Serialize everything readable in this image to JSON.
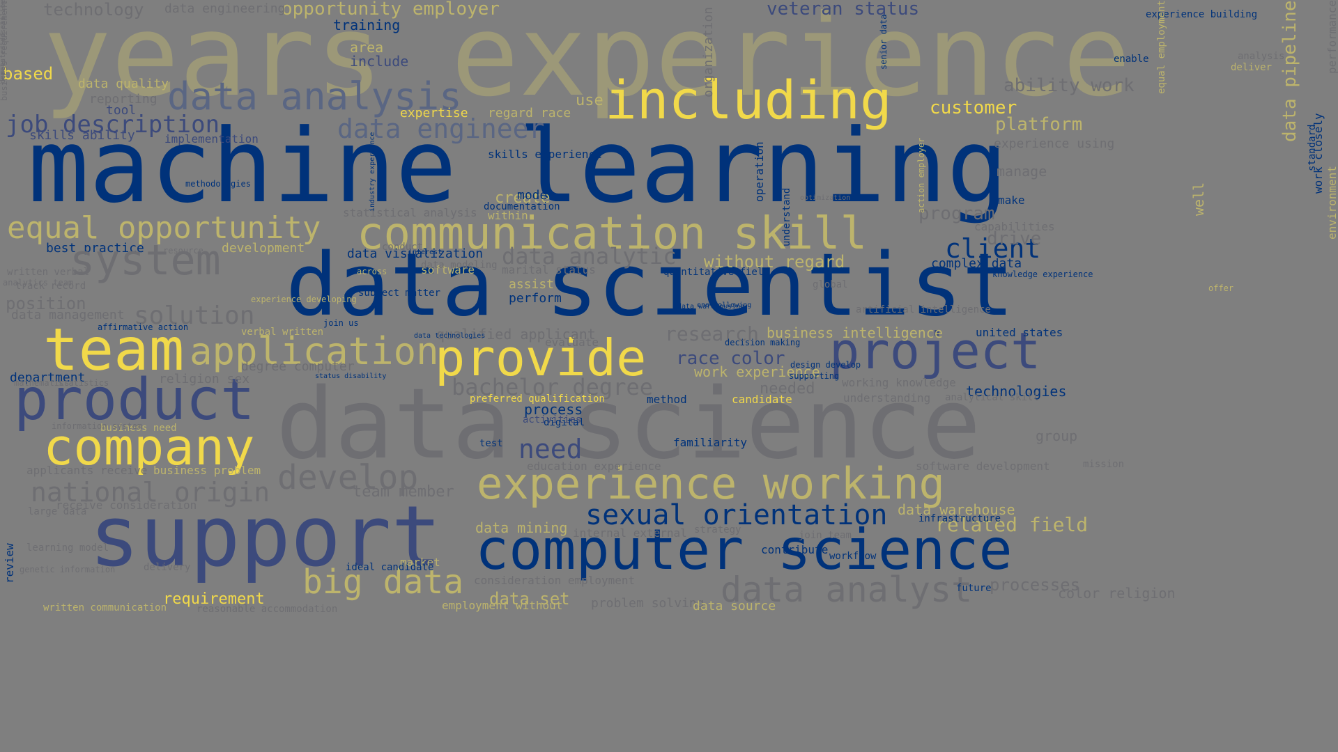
{
  "palette": {
    "background": "#7f7f7f",
    "navy": "#00327a",
    "slate": "#3c4a7c",
    "steel": "#5a6683",
    "grey": "#6e6e72",
    "olive": "#9c9878",
    "khaki": "#bdb46c",
    "yellow": "#f1d94a"
  },
  "words": [
    {
      "text": "years experience",
      "size": 162,
      "color": "olive",
      "rotate": 0
    },
    {
      "text": "machine learning",
      "size": 146,
      "color": "navy",
      "rotate": 0
    },
    {
      "text": "data scientist",
      "size": 124,
      "color": "navy",
      "rotate": 0
    },
    {
      "text": "data science",
      "size": 140,
      "color": "grey",
      "rotate": 0
    },
    {
      "text": "support",
      "size": 120,
      "color": "slate",
      "rotate": 0
    },
    {
      "text": "including",
      "size": 76,
      "color": "yellow",
      "rotate": 0
    },
    {
      "text": "communication skill",
      "size": 64,
      "color": "khaki",
      "rotate": 0
    },
    {
      "text": "team",
      "size": 84,
      "color": "yellow",
      "rotate": 0
    },
    {
      "text": "product",
      "size": 82,
      "color": "slate",
      "rotate": 0
    },
    {
      "text": "provide",
      "size": 72,
      "color": "yellow",
      "rotate": 0
    },
    {
      "text": "project",
      "size": 72,
      "color": "slate",
      "rotate": 0
    },
    {
      "text": "company",
      "size": 72,
      "color": "yellow",
      "rotate": 0
    },
    {
      "text": "computer science",
      "size": 80,
      "color": "navy",
      "rotate": 0
    },
    {
      "text": "experience working",
      "size": 62,
      "color": "khaki",
      "rotate": 0
    },
    {
      "text": "application",
      "size": 54,
      "color": "khaki",
      "rotate": 0
    },
    {
      "text": "data analysis",
      "size": 54,
      "color": "steel",
      "rotate": 0
    },
    {
      "text": "equal opportunity",
      "size": 44,
      "color": "khaki",
      "rotate": 0
    },
    {
      "text": "big data",
      "size": 48,
      "color": "khaki",
      "rotate": 0
    },
    {
      "text": "sexual orientation",
      "size": 40,
      "color": "navy",
      "rotate": 0
    },
    {
      "text": "data analyst",
      "size": 50,
      "color": "grey",
      "rotate": 0
    },
    {
      "text": "develop",
      "size": 48,
      "color": "grey",
      "rotate": 0
    },
    {
      "text": "national origin",
      "size": 38,
      "color": "grey",
      "rotate": 0
    },
    {
      "text": "data engineer",
      "size": 38,
      "color": "steel",
      "rotate": 0
    },
    {
      "text": "client",
      "size": 38,
      "color": "navy",
      "rotate": 0
    },
    {
      "text": "bachelor degree",
      "size": 32,
      "color": "grey",
      "rotate": 0
    },
    {
      "text": "need",
      "size": 38,
      "color": "slate",
      "rotate": 0
    },
    {
      "text": "job description",
      "size": 34,
      "color": "slate",
      "rotate": 0
    },
    {
      "text": "data analytic",
      "size": 32,
      "color": "grey",
      "rotate": 0
    },
    {
      "text": "opportunity employer",
      "size": 26,
      "color": "khaki",
      "rotate": 0
    },
    {
      "text": "veteran status",
      "size": 26,
      "color": "slate",
      "rotate": 0
    },
    {
      "text": "customer",
      "size": 26,
      "color": "yellow",
      "rotate": 0
    },
    {
      "text": "platform",
      "size": 26,
      "color": "khaki",
      "rotate": 0
    },
    {
      "text": "ability work",
      "size": 26,
      "color": "grey",
      "rotate": 0
    },
    {
      "text": "related field",
      "size": 28,
      "color": "khaki",
      "rotate": 0
    },
    {
      "text": "data warehouse",
      "size": 20,
      "color": "khaki",
      "rotate": 0
    },
    {
      "text": "race color",
      "size": 26,
      "color": "slate",
      "rotate": 0
    },
    {
      "text": "business intelligence",
      "size": 20,
      "color": "khaki",
      "rotate": 0
    },
    {
      "text": "work experience",
      "size": 20,
      "color": "khaki",
      "rotate": 0
    },
    {
      "text": "without regard",
      "size": 24,
      "color": "khaki",
      "rotate": 0
    },
    {
      "text": "program",
      "size": 26,
      "color": "grey",
      "rotate": 0
    },
    {
      "text": "drive",
      "size": 26,
      "color": "grey",
      "rotate": 0
    },
    {
      "text": "complex data",
      "size": 18,
      "color": "navy",
      "rotate": 0
    },
    {
      "text": "data visualization",
      "size": 18,
      "color": "navy",
      "rotate": 0
    },
    {
      "text": "data engineering",
      "size": 18,
      "color": "grey",
      "rotate": 0
    },
    {
      "text": "technology",
      "size": 24,
      "color": "grey",
      "rotate": 0
    },
    {
      "text": "training",
      "size": 20,
      "color": "navy",
      "rotate": 0
    },
    {
      "text": "area",
      "size": 20,
      "color": "khaki",
      "rotate": 0
    },
    {
      "text": "include",
      "size": 20,
      "color": "slate",
      "rotate": 0
    },
    {
      "text": "based",
      "size": 24,
      "color": "yellow",
      "rotate": 0
    },
    {
      "text": "data quality",
      "size": 18,
      "color": "khaki",
      "rotate": 0
    },
    {
      "text": "reporting",
      "size": 18,
      "color": "grey",
      "rotate": 0
    },
    {
      "text": "tool",
      "size": 18,
      "color": "slate",
      "rotate": 0
    },
    {
      "text": "skills ability",
      "size": 18,
      "color": "slate",
      "rotate": 0
    },
    {
      "text": "implementation",
      "size": 16,
      "color": "slate",
      "rotate": 0
    },
    {
      "text": "methodologies",
      "size": 12,
      "color": "navy",
      "rotate": 0
    },
    {
      "text": "expertise",
      "size": 18,
      "color": "yellow",
      "rotate": 0
    },
    {
      "text": "regard race",
      "size": 18,
      "color": "khaki",
      "rotate": 0
    },
    {
      "text": "use",
      "size": 22,
      "color": "khaki",
      "rotate": 0
    },
    {
      "text": "skills experience",
      "size": 16,
      "color": "navy",
      "rotate": 0
    },
    {
      "text": "create",
      "size": 22,
      "color": "khaki",
      "rotate": 0
    },
    {
      "text": "model",
      "size": 18,
      "color": "navy",
      "rotate": 0
    },
    {
      "text": "documentation",
      "size": 14,
      "color": "navy",
      "rotate": 0
    },
    {
      "text": "within",
      "size": 16,
      "color": "khaki",
      "rotate": 0
    },
    {
      "text": "best practice",
      "size": 18,
      "color": "navy",
      "rotate": 0
    },
    {
      "text": "development",
      "size": 18,
      "color": "khaki",
      "rotate": 0
    },
    {
      "text": "position",
      "size": 24,
      "color": "grey",
      "rotate": 0
    },
    {
      "text": "data management",
      "size": 18,
      "color": "grey",
      "rotate": 0
    },
    {
      "text": "solution",
      "size": 36,
      "color": "grey",
      "rotate": 0
    },
    {
      "text": "system",
      "size": 60,
      "color": "grey",
      "rotate": 0
    },
    {
      "text": "statistical analysis",
      "size": 16,
      "color": "grey",
      "rotate": 0
    },
    {
      "text": "marital status",
      "size": 16,
      "color": "grey",
      "rotate": 0
    },
    {
      "text": "assist",
      "size": 18,
      "color": "khaki",
      "rotate": 0
    },
    {
      "text": "perform",
      "size": 18,
      "color": "navy",
      "rotate": 0
    },
    {
      "text": "software",
      "size": 16,
      "color": "khaki",
      "rotate": 0
    },
    {
      "text": "qualified applicant",
      "size": 20,
      "color": "grey",
      "rotate": 0
    },
    {
      "text": "evaluate",
      "size": 16,
      "color": "grey",
      "rotate": 0
    },
    {
      "text": "quantitative field",
      "size": 14,
      "color": "navy",
      "rotate": 0
    },
    {
      "text": "research",
      "size": 28,
      "color": "grey",
      "rotate": 0
    },
    {
      "text": "decision making",
      "size": 12,
      "color": "navy",
      "rotate": 0
    },
    {
      "text": "candidate",
      "size": 16,
      "color": "yellow",
      "rotate": 0
    },
    {
      "text": "needed",
      "size": 22,
      "color": "grey",
      "rotate": 0
    },
    {
      "text": "working knowledge",
      "size": 16,
      "color": "grey",
      "rotate": 0
    },
    {
      "text": "technologies",
      "size": 20,
      "color": "navy",
      "rotate": 0
    },
    {
      "text": "united states",
      "size": 16,
      "color": "navy",
      "rotate": 0
    },
    {
      "text": "analytical skill",
      "size": 14,
      "color": "grey",
      "rotate": 0
    },
    {
      "text": "understanding",
      "size": 16,
      "color": "grey",
      "rotate": 0
    },
    {
      "text": "method",
      "size": 16,
      "color": "navy",
      "rotate": 0
    },
    {
      "text": "process",
      "size": 20,
      "color": "navy",
      "rotate": 0
    },
    {
      "text": "activities",
      "size": 14,
      "color": "slate",
      "rotate": 0
    },
    {
      "text": "preferred qualification",
      "size": 14,
      "color": "yellow",
      "rotate": 0
    },
    {
      "text": "religion sex",
      "size": 18,
      "color": "grey",
      "rotate": 0
    },
    {
      "text": "degree computer",
      "size": 18,
      "color": "grey",
      "rotate": 0
    },
    {
      "text": "department",
      "size": 18,
      "color": "navy",
      "rotate": 0
    },
    {
      "text": "business need",
      "size": 14,
      "color": "khaki",
      "rotate": 0
    },
    {
      "text": "business problem",
      "size": 16,
      "color": "khaki",
      "rotate": 0
    },
    {
      "text": "applicants receive",
      "size": 16,
      "color": "grey",
      "rotate": 0
    },
    {
      "text": "receive consideration",
      "size": 16,
      "color": "grey",
      "rotate": 0
    },
    {
      "text": "team member",
      "size": 22,
      "color": "grey",
      "rotate": 0
    },
    {
      "text": "education experience",
      "size": 16,
      "color": "grey",
      "rotate": 0
    },
    {
      "text": "familiarity",
      "size": 16,
      "color": "navy",
      "rotate": 0
    },
    {
      "text": "software development",
      "size": 16,
      "color": "grey",
      "rotate": 0
    },
    {
      "text": "data mining",
      "size": 20,
      "color": "khaki",
      "rotate": 0
    },
    {
      "text": "internal external",
      "size": 16,
      "color": "grey",
      "rotate": 0
    },
    {
      "text": "strategy",
      "size": 14,
      "color": "grey",
      "rotate": 0
    },
    {
      "text": "join team",
      "size": 14,
      "color": "grey",
      "rotate": 0
    },
    {
      "text": "contribute",
      "size": 16,
      "color": "navy",
      "rotate": 0
    },
    {
      "text": "infrastructure",
      "size": 14,
      "color": "navy",
      "rotate": 0
    },
    {
      "text": "workflow",
      "size": 14,
      "color": "navy",
      "rotate": 0
    },
    {
      "text": "market",
      "size": 16,
      "color": "khaki",
      "rotate": 0
    },
    {
      "text": "ideal candidate",
      "size": 14,
      "color": "navy",
      "rotate": 0
    },
    {
      "text": "consideration employment",
      "size": 16,
      "color": "grey",
      "rotate": 0
    },
    {
      "text": "data set",
      "size": 24,
      "color": "khaki",
      "rotate": 0
    },
    {
      "text": "problem solving",
      "size": 18,
      "color": "grey",
      "rotate": 0
    },
    {
      "text": "data source",
      "size": 18,
      "color": "khaki",
      "rotate": 0
    },
    {
      "text": "employment without",
      "size": 16,
      "color": "khaki",
      "rotate": 0
    },
    {
      "text": "requirement",
      "size": 22,
      "color": "yellow",
      "rotate": 0
    },
    {
      "text": "written communication",
      "size": 14,
      "color": "khaki",
      "rotate": 0
    },
    {
      "text": "reasonable accommodation",
      "size": 14,
      "color": "grey",
      "rotate": 0
    },
    {
      "text": "processes",
      "size": 24,
      "color": "grey",
      "rotate": 0
    },
    {
      "text": "color religion",
      "size": 20,
      "color": "grey",
      "rotate": 0
    },
    {
      "text": "future",
      "size": 14,
      "color": "navy",
      "rotate": 0
    },
    {
      "text": "group",
      "size": 20,
      "color": "grey",
      "rotate": 0
    },
    {
      "text": "mission",
      "size": 14,
      "color": "grey",
      "rotate": 0
    },
    {
      "text": "manage",
      "size": 20,
      "color": "grey",
      "rotate": 0
    },
    {
      "text": "make",
      "size": 16,
      "color": "navy",
      "rotate": 0
    },
    {
      "text": "experience using",
      "size": 18,
      "color": "grey",
      "rotate": 0
    },
    {
      "text": "experience building",
      "size": 14,
      "color": "navy",
      "rotate": 0
    },
    {
      "text": "deliver",
      "size": 14,
      "color": "khaki",
      "rotate": 0
    },
    {
      "text": "enable",
      "size": 14,
      "color": "navy",
      "rotate": 0
    },
    {
      "text": "analysis",
      "size": 14,
      "color": "grey",
      "rotate": 0
    },
    {
      "text": "capabilities",
      "size": 16,
      "color": "grey",
      "rotate": 0
    },
    {
      "text": "offer",
      "size": 12,
      "color": "khaki",
      "rotate": 0
    },
    {
      "text": "knowledge experience",
      "size": 12,
      "color": "navy",
      "rotate": 0
    },
    {
      "text": "supporting",
      "size": 12,
      "color": "navy",
      "rotate": 0
    },
    {
      "text": "design develop",
      "size": 12,
      "color": "navy",
      "rotate": 0
    },
    {
      "text": "artificial intelligence",
      "size": 14,
      "color": "grey",
      "rotate": 0
    },
    {
      "text": "experience developing",
      "size": 12,
      "color": "khaki",
      "rotate": 0
    },
    {
      "text": "affirmative action",
      "size": 12,
      "color": "navy",
      "rotate": 0
    },
    {
      "text": "track record",
      "size": 14,
      "color": "grey",
      "rotate": 0
    },
    {
      "text": "written verbal",
      "size": 14,
      "color": "grey",
      "rotate": 0
    },
    {
      "text": "analytics team",
      "size": 12,
      "color": "grey",
      "rotate": 0
    },
    {
      "text": "large data",
      "size": 14,
      "color": "grey",
      "rotate": 0
    },
    {
      "text": "genetic information",
      "size": 12,
      "color": "grey",
      "rotate": 0
    },
    {
      "text": "delivery",
      "size": 14,
      "color": "grey",
      "rotate": 0
    },
    {
      "text": "learning model",
      "size": 14,
      "color": "grey",
      "rotate": 0
    },
    {
      "text": "test",
      "size": 14,
      "color": "navy",
      "rotate": 0
    },
    {
      "text": "digital",
      "size": 14,
      "color": "navy",
      "rotate": 0
    },
    {
      "text": "verbal written",
      "size": 14,
      "color": "khaki",
      "rotate": 0
    },
    {
      "text": "conduct",
      "size": 14,
      "color": "grey",
      "rotate": 0
    },
    {
      "text": "resource",
      "size": 12,
      "color": "grey",
      "rotate": 0
    },
    {
      "text": "subject matter",
      "size": 14,
      "color": "navy",
      "rotate": 0
    },
    {
      "text": "across",
      "size": 12,
      "color": "khaki",
      "rotate": 0
    },
    {
      "text": "join us",
      "size": 12,
      "color": "navy",
      "rotate": 0
    },
    {
      "text": "data technologies",
      "size": 10,
      "color": "navy",
      "rotate": 0
    },
    {
      "text": "status disability",
      "size": 10,
      "color": "navy",
      "rotate": 0
    },
    {
      "text": "statistics",
      "size": 12,
      "color": "grey",
      "rotate": 0
    },
    {
      "text": "mathematics",
      "size": 12,
      "color": "grey",
      "rotate": 0
    },
    {
      "text": "information system",
      "size": 12,
      "color": "grey",
      "rotate": 0
    },
    {
      "text": "interest",
      "size": 10,
      "color": "navy",
      "rotate": 0
    },
    {
      "text": "data modeling",
      "size": 14,
      "color": "grey",
      "rotate": 0
    },
    {
      "text": "one following",
      "size": 10,
      "color": "navy",
      "rotate": 0
    },
    {
      "text": "data warehousing",
      "size": 10,
      "color": "navy",
      "rotate": 0
    },
    {
      "text": "global",
      "size": 14,
      "color": "grey",
      "rotate": 0
    },
    {
      "text": "optimization",
      "size": 10,
      "color": "grey",
      "rotate": 0
    },
    {
      "text": "operation",
      "size": 16,
      "color": "navy",
      "rotate": -90
    },
    {
      "text": "understand",
      "size": 14,
      "color": "navy",
      "rotate": -90
    },
    {
      "text": "review",
      "size": 16,
      "color": "navy",
      "rotate": -90
    },
    {
      "text": "standard",
      "size": 14,
      "color": "navy",
      "rotate": -90
    },
    {
      "text": "environment",
      "size": 16,
      "color": "khaki",
      "rotate": -90
    },
    {
      "text": "data pipeline",
      "size": 26,
      "color": "khaki",
      "rotate": -90
    },
    {
      "text": "work closely",
      "size": 16,
      "color": "navy",
      "rotate": -90
    },
    {
      "text": "equal employment",
      "size": 14,
      "color": "khaki",
      "rotate": -90
    },
    {
      "text": "organization",
      "size": 18,
      "color": "grey",
      "rotate": -90
    },
    {
      "text": "performance",
      "size": 16,
      "color": "grey",
      "rotate": -90
    },
    {
      "text": "well",
      "size": 20,
      "color": "khaki",
      "rotate": -90
    },
    {
      "text": "senior data",
      "size": 12,
      "color": "navy",
      "rotate": -90
    },
    {
      "text": "industry experience",
      "size": 10,
      "color": "navy",
      "rotate": -90
    },
    {
      "text": "action employer",
      "size": 12,
      "color": "khaki",
      "rotate": -90
    },
    {
      "text": "business requirement",
      "size": 12,
      "color": "grey",
      "rotate": -90
    },
    {
      "text": "demonstrated ability",
      "size": 10,
      "color": "grey",
      "rotate": -90
    },
    {
      "text": "related discipline",
      "size": 10,
      "color": "grey",
      "rotate": -90
    }
  ]
}
